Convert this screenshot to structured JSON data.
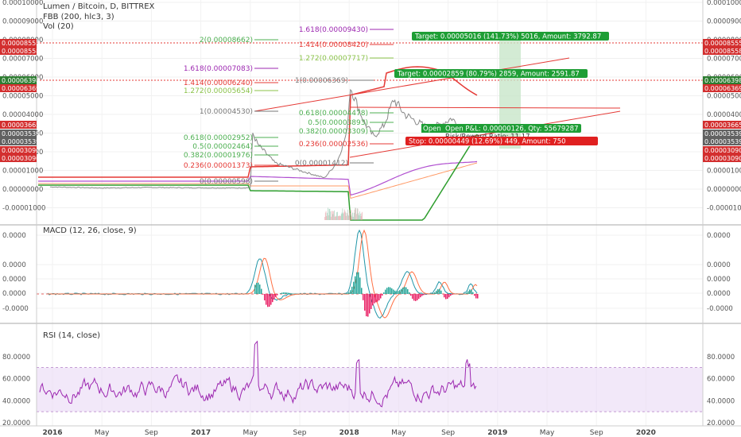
{
  "chart_data": {
    "type": "line",
    "title": "Lumen / Bitcoin, D, BITTREX",
    "main_pane": {
      "indicator_legend": [
        "FBB (200, hlc3, 3)",
        "Vol (20)"
      ],
      "y_ticks": [
        "0.00010000",
        "0.00009000",
        "0.00008000",
        "0.00007000",
        "0.00006000",
        "0.00005000",
        "0.00004000",
        "0.00003000",
        "0.00002000",
        "0.00001000",
        "0.00000000",
        "-0.00001000"
      ],
      "left_axis_flags": [
        {
          "text": "0.00008555",
          "color": "#d32f2f"
        },
        {
          "text": "0.00008558",
          "color": "#d32f2f"
        },
        {
          "text": "0.00006398",
          "color": "#2e7d32"
        },
        {
          "text": "0.00006369",
          "color": "#d32f2f"
        },
        {
          "text": "0.00003665",
          "color": "#d32f2f"
        },
        {
          "text": "0.00003539",
          "color": "#616161"
        },
        {
          "text": "0.00003539",
          "color": "#616161"
        },
        {
          "text": "0.00003090",
          "color": "#d32f2f"
        },
        {
          "text": "0.00003090",
          "color": "#d32f2f"
        }
      ],
      "right_axis_flags": [
        {
          "text": "0.00008555",
          "color": "#d32f2f"
        },
        {
          "text": "0.00008558",
          "color": "#d32f2f"
        },
        {
          "text": "0.00006398",
          "color": "#2e7d32"
        },
        {
          "text": "0.00006369",
          "color": "#d32f2f"
        },
        {
          "text": "0.00003665",
          "color": "#d32f2f"
        },
        {
          "text": "0.00003539",
          "color": "#616161"
        },
        {
          "text": "0.00003539",
          "color": "#616161"
        },
        {
          "text": "0.00003090",
          "color": "#d32f2f"
        },
        {
          "text": "0.00003090",
          "color": "#d32f2f"
        }
      ],
      "fib_levels": [
        {
          "text": "1.618(0.00009430)",
          "color": "#9c27b0"
        },
        {
          "text": "2(0.00008662)",
          "color": "#4caf50"
        },
        {
          "text": "1.414(0.00008420)",
          "color": "#e53935"
        },
        {
          "text": "1.272(0.00007717)",
          "color": "#8bc34a"
        },
        {
          "text": "1.618(0.00007083)",
          "color": "#9c27b0"
        },
        {
          "text": "1(0.00006369)",
          "color": "#777777"
        },
        {
          "text": "1.414(0.00006240)",
          "color": "#e53935"
        },
        {
          "text": "1.272(0.00005654)",
          "color": "#8bc34a"
        },
        {
          "text": "1(0.00004530)",
          "color": "#777777"
        },
        {
          "text": "0.618(0.00004478)",
          "color": "#4caf50"
        },
        {
          "text": "0.5(0.00003893)",
          "color": "#4caf50"
        },
        {
          "text": "0.382(0.00003309)",
          "color": "#4caf50"
        },
        {
          "text": "0.618(0.00002952)",
          "color": "#4caf50"
        },
        {
          "text": "0.236(0.00002536)",
          "color": "#e53935"
        },
        {
          "text": "0.5(0.00002464)",
          "color": "#4caf50"
        },
        {
          "text": "0.382(0.00001976)",
          "color": "#4caf50"
        },
        {
          "text": "0(0.00001412)",
          "color": "#777777"
        },
        {
          "text": "0.236(0.00001373)",
          "color": "#e53935"
        },
        {
          "text": "0(0.00000598)",
          "color": "#777777"
        }
      ],
      "trade_labels": [
        {
          "text": "Target: 0.00005016 (141.73%) 5016, Amount: 3792.87",
          "color": "#2e9e2e"
        },
        {
          "text": "Target: 0.00002859 (80.79%) 2859, Amount: 2591.87",
          "color": "#2e9e2e"
        },
        {
          "text": "Open P&L: 0.00000126, Qty: 55679287",
          "color": "#2e9e2e"
        },
        {
          "text": "Risk/Reward Ratio: 11.17",
          "color": "#555555"
        },
        {
          "text": "Stop: 0.00000449 (12.69%) 449, Amount: 750",
          "color": "#e02020"
        }
      ],
      "open_label_partial": "Open",
      "price_series": {
        "x": [
          "2015-12",
          "2016-03",
          "2016-06",
          "2016-09",
          "2016-12",
          "2017-03",
          "2017-05",
          "2017-07",
          "2017-09",
          "2017-11",
          "2018-01",
          "2018-02",
          "2018-03",
          "2018-04",
          "2018-05",
          "2018-06",
          "2018-07",
          "2018-08",
          "2018-09",
          "2018-10"
        ],
        "y": [
          6e-07,
          4e-07,
          6e-07,
          5e-07,
          6e-07,
          7e-07,
          2.5e-05,
          1.2e-05,
          8e-06,
          6e-06,
          5.2e-05,
          3.5e-05,
          2.4e-05,
          4.5e-05,
          3.7e-05,
          3.8e-05,
          3e-05,
          3.1e-05,
          3.3e-05,
          3.4e-05
        ]
      }
    },
    "macd_pane": {
      "legend": "MACD (12, 26, close, 9)",
      "y_ticks": [
        "0.0000",
        "0.0000",
        "0.0000",
        "0.0000",
        "-0.0000"
      ]
    },
    "rsi_pane": {
      "legend": "RSI (14, close)",
      "y_ticks": [
        "80.0000",
        "60.0000",
        "40.0000",
        "20.0000"
      ],
      "band": [
        30,
        70
      ]
    },
    "x_ticks": [
      "2016",
      "May",
      "Sep",
      "2017",
      "May",
      "Sep",
      "2018",
      "May",
      "Sep",
      "2019",
      "May",
      "Sep",
      "2020"
    ],
    "colors": {
      "price": "#888888",
      "band_red": "#e53935",
      "band_green": "#2e9e2e",
      "band_purple": "#b04fd0",
      "band_orange": "#ff9a66",
      "rsi": "#9c27b0",
      "rsi_band": "#e9d9f5",
      "target_zone": "#c8e6c9"
    }
  }
}
